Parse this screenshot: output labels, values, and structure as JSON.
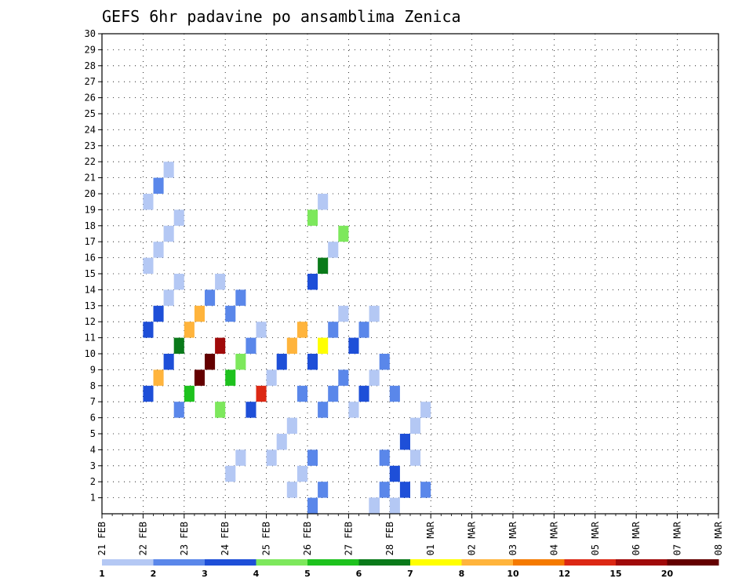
{
  "chart_data": {
    "type": "heatmap",
    "title": "GEFS 6hr padavine po ansamblima Zenica",
    "y_ticks": [
      1,
      2,
      3,
      4,
      5,
      6,
      7,
      8,
      9,
      10,
      11,
      12,
      13,
      14,
      15,
      16,
      17,
      18,
      19,
      20,
      21,
      22,
      23,
      24,
      25,
      26,
      27,
      28,
      29,
      30
    ],
    "ylim": [
      0,
      30
    ],
    "x_ticks": [
      "21 FEB",
      "22 FEB",
      "23 FEB",
      "24 FEB",
      "25 FEB",
      "26 FEB",
      "27 FEB",
      "28 FEB",
      "01 MAR",
      "02 MAR",
      "03 MAR",
      "04 MAR",
      "05 MAR",
      "06 MAR",
      "07 MAR",
      "08 MAR"
    ],
    "time_steps_per_day": 4,
    "grid": true,
    "colorbar": {
      "placement": "bottom",
      "labels": [
        "1",
        "2",
        "3",
        "4",
        "5",
        "6",
        "7",
        "8",
        "10",
        "12",
        "15",
        "20"
      ],
      "colors": [
        "#b4c8f4",
        "#5a87ea",
        "#1e4fd8",
        "#7de85c",
        "#1ec21e",
        "#0a7a1a",
        "#ffff00",
        "#ffb43c",
        "#f57a00",
        "#dc2814",
        "#a00a0a",
        "#640000"
      ]
    },
    "cells": [
      [
        5,
        0,
        1
      ],
      [
        5,
        1,
        1
      ],
      [
        6,
        0,
        2
      ],
      [
        6,
        1,
        1
      ],
      [
        7,
        0,
        0
      ],
      [
        7,
        1,
        2
      ],
      [
        7,
        3,
        0
      ],
      [
        1,
        6,
        1
      ],
      [
        1,
        7,
        2
      ],
      [
        1,
        8,
        7
      ],
      [
        1,
        9,
        2
      ],
      [
        1,
        10,
        5
      ],
      [
        1,
        11,
        2
      ],
      [
        1,
        12,
        2
      ],
      [
        1,
        13,
        0
      ],
      [
        1,
        14,
        0
      ],
      [
        1,
        15,
        0
      ],
      [
        1,
        16,
        0
      ],
      [
        1,
        17,
        0
      ],
      [
        1,
        18,
        0
      ],
      [
        1,
        19,
        0
      ],
      [
        1,
        20,
        1
      ],
      [
        1,
        21,
        0
      ],
      [
        2,
        6,
        3
      ],
      [
        2,
        7,
        4
      ],
      [
        2,
        8,
        11
      ],
      [
        2,
        9,
        11
      ],
      [
        2,
        10,
        10
      ],
      [
        2,
        11,
        7
      ],
      [
        2,
        12,
        7
      ],
      [
        2,
        13,
        1
      ],
      [
        2,
        14,
        0
      ],
      [
        3,
        2,
        0
      ],
      [
        3,
        3,
        0
      ],
      [
        3,
        6,
        2
      ],
      [
        3,
        7,
        9
      ],
      [
        3,
        8,
        4
      ],
      [
        3,
        9,
        3
      ],
      [
        3,
        10,
        1
      ],
      [
        3,
        11,
        0
      ],
      [
        3,
        12,
        1
      ],
      [
        3,
        13,
        1
      ],
      [
        4,
        1,
        0
      ],
      [
        4,
        2,
        0
      ],
      [
        4,
        3,
        0
      ],
      [
        4,
        4,
        0
      ],
      [
        4,
        5,
        0
      ],
      [
        4,
        7,
        1
      ],
      [
        4,
        8,
        0
      ],
      [
        4,
        9,
        2
      ],
      [
        4,
        10,
        7
      ],
      [
        4,
        11,
        7
      ],
      [
        5,
        3,
        1
      ],
      [
        5,
        6,
        1
      ],
      [
        5,
        7,
        1
      ],
      [
        5,
        8,
        1
      ],
      [
        5,
        9,
        2
      ],
      [
        5,
        10,
        6
      ],
      [
        5,
        11,
        1
      ],
      [
        5,
        12,
        0
      ],
      [
        5,
        14,
        2
      ],
      [
        5,
        15,
        5
      ],
      [
        5,
        16,
        0
      ],
      [
        5,
        17,
        3
      ],
      [
        5,
        18,
        3
      ],
      [
        5,
        19,
        0
      ],
      [
        6,
        0,
        0
      ],
      [
        6,
        3,
        1
      ],
      [
        6,
        6,
        0
      ],
      [
        6,
        7,
        2
      ],
      [
        6,
        8,
        0
      ],
      [
        6,
        9,
        1
      ],
      [
        6,
        10,
        2
      ],
      [
        6,
        11,
        1
      ],
      [
        6,
        12,
        0
      ],
      [
        7,
        1,
        1
      ],
      [
        7,
        2,
        2
      ],
      [
        7,
        4,
        2
      ],
      [
        7,
        5,
        0
      ],
      [
        7,
        6,
        0
      ],
      [
        7,
        7,
        1
      ]
    ]
  }
}
